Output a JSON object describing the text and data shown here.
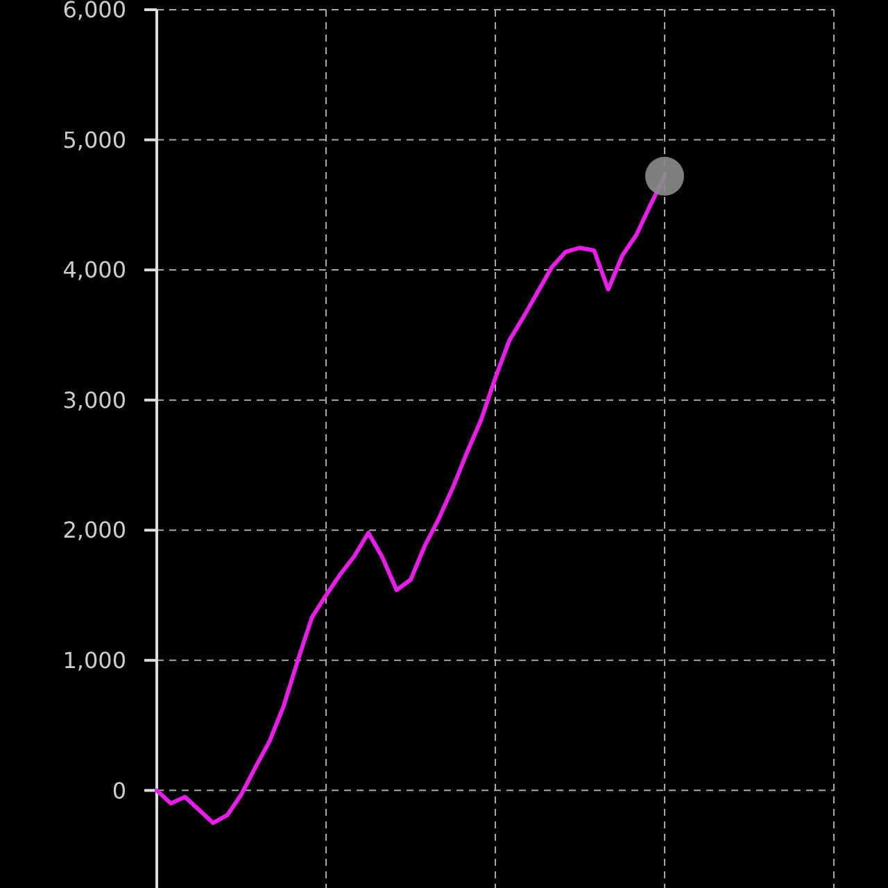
{
  "chart_data": {
    "type": "line",
    "categories": [
      null,
      null,
      null,
      null,
      null,
      null,
      null,
      null,
      null,
      null,
      null,
      null,
      null,
      null,
      null,
      null,
      null,
      null,
      null,
      null,
      null,
      null,
      null,
      null,
      null,
      null,
      null,
      null,
      null,
      null,
      null,
      null,
      null,
      null,
      null,
      null,
      null
    ],
    "ylim": [
      -750,
      6000
    ],
    "yticks": [
      0,
      {
        "value": 1000,
        "label": "1,000"
      },
      {
        "value": 2000,
        "label": "2,000"
      },
      {
        "value": 3000,
        "label": "3,000"
      },
      {
        "value": 4000,
        "label": "4,000"
      },
      {
        "value": 5000,
        "label": "5,000"
      },
      {
        "value": 6000,
        "label": "6,000"
      }
    ],
    "grid": true,
    "series": [
      {
        "color": "#e81ee8",
        "values": [
          0,
          -100,
          -50,
          -150,
          -250,
          -190,
          -30,
          180,
          380,
          650,
          1000,
          1330,
          1500,
          1660,
          1800,
          1980,
          1790,
          1540,
          1620,
          1880,
          2090,
          2330,
          2600,
          2850,
          3170,
          3460,
          3640,
          3830,
          4020,
          4140,
          4170,
          4150,
          3850,
          4110,
          4270,
          4500,
          4720
        ]
      },
      {
        "type": "scatter",
        "color": "#8c8c8c",
        "values": [
          null,
          null,
          null,
          null,
          null,
          null,
          null,
          null,
          null,
          null,
          null,
          null,
          null,
          null,
          null,
          null,
          null,
          null,
          null,
          null,
          null,
          null,
          null,
          null,
          null,
          null,
          null,
          null,
          null,
          null,
          null,
          null,
          null,
          null,
          null,
          null,
          4720
        ]
      }
    ]
  }
}
